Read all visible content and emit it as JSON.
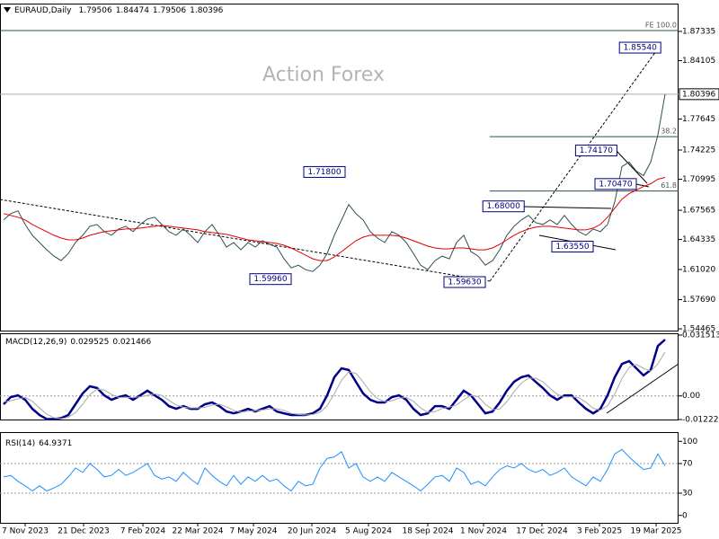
{
  "chart_data": [
    {
      "type": "line",
      "title": "EURAUD,Daily",
      "ohlc": [
        1.79506,
        1.84474,
        1.79506,
        1.80396
      ],
      "watermark": "Action Forex",
      "xlim": [
        -0.5,
        93.875
      ],
      "ylim": [
        1.5427,
        1.9031
      ],
      "yticks": [
        1.87335,
        1.84105,
        1.77645,
        1.74225,
        1.70995,
        1.67565,
        1.64335,
        {
          "value": 1.6102,
          "label": "1.61020"
        },
        {
          "value": 1.5769,
          "label": "1.57690"
        },
        1.54465
      ],
      "current_price": 1.80396,
      "series": [
        {
          "color": "#2f4f4f",
          "values": [
            1.665,
            1.672,
            1.675,
            1.66,
            1.648,
            1.64,
            1.632,
            1.625,
            1.62,
            1.628,
            1.64,
            1.648,
            1.658,
            1.66,
            1.652,
            1.648,
            1.655,
            1.658,
            1.652,
            1.66,
            1.666,
            1.668,
            1.66,
            1.652,
            1.648,
            1.655,
            1.648,
            1.64,
            1.652,
            1.66,
            1.648,
            1.635,
            1.64,
            1.632,
            1.64,
            1.635,
            1.642,
            1.638,
            1.635,
            1.622,
            1.612,
            1.615,
            1.61,
            1.608,
            1.615,
            1.628,
            1.648,
            1.665,
            1.682,
            1.672,
            1.665,
            1.652,
            1.645,
            1.64,
            1.652,
            1.648,
            1.64,
            1.628,
            1.615,
            1.61,
            1.62,
            1.625,
            1.622,
            1.64,
            1.648,
            1.63,
            1.625,
            1.615,
            1.62,
            1.632,
            1.648,
            1.658,
            1.665,
            1.67,
            1.662,
            1.66,
            1.665,
            1.66,
            1.67,
            1.66,
            1.652,
            1.648,
            1.655,
            1.652,
            1.66,
            1.685,
            1.724,
            1.729,
            1.719,
            1.714,
            1.729,
            1.759,
            1.804
          ]
        },
        {
          "color": "#e00000",
          "values": [
            1.672,
            1.67,
            1.668,
            1.665,
            1.66,
            1.656,
            1.652,
            1.648,
            1.645,
            1.643,
            1.643,
            1.645,
            1.648,
            1.65,
            1.652,
            1.653,
            1.654,
            1.655,
            1.655,
            1.656,
            1.657,
            1.658,
            1.659,
            1.658,
            1.657,
            1.656,
            1.655,
            1.654,
            1.652,
            1.651,
            1.65,
            1.649,
            1.647,
            1.645,
            1.643,
            1.642,
            1.641,
            1.64,
            1.639,
            1.637,
            1.634,
            1.63,
            1.626,
            1.622,
            1.62,
            1.62,
            1.624,
            1.63,
            1.636,
            1.642,
            1.646,
            1.648,
            1.648,
            1.648,
            1.648,
            1.647,
            1.645,
            1.642,
            1.639,
            1.636,
            1.634,
            1.633,
            1.633,
            1.634,
            1.634,
            1.633,
            1.632,
            1.632,
            1.634,
            1.638,
            1.643,
            1.648,
            1.652,
            1.655,
            1.657,
            1.658,
            1.658,
            1.657,
            1.656,
            1.655,
            1.654,
            1.654,
            1.656,
            1.66,
            1.668,
            1.678,
            1.688,
            1.694,
            1.698,
            1.702,
            1.705,
            1.71,
            1.712
          ]
        }
      ],
      "annotations": [
        {
          "x": 47.5,
          "value": 1.718,
          "label": "1.71800"
        },
        {
          "x": 40,
          "value": 1.5996,
          "label": "1.59960"
        },
        {
          "x": 67,
          "value": 1.5963,
          "label": "1.59630"
        },
        {
          "x": 72.4,
          "value": 1.68,
          "label": "1.68000"
        },
        {
          "x": 82,
          "value": 1.6355,
          "label": "1.63550"
        },
        {
          "x": 85.3,
          "value": 1.7417,
          "label": "1.74170"
        },
        {
          "x": 88,
          "value": 1.7047,
          "label": "1.70470"
        },
        {
          "x": 91.4,
          "value": 1.8554,
          "label": "1.85540"
        }
      ],
      "levels": [
        {
          "label": "FE 100.0",
          "value": 1.8743,
          "from": -0.5
        },
        {
          "label": 38.2,
          "value": 1.757,
          "from": 67.6
        },
        {
          "label": 61.8,
          "value": 1.697,
          "from": 67.6
        }
      ]
    },
    {
      "type": "line",
      "title": "MACD(12,26,9)",
      "readout": [
        0.029525,
        0.021466
      ],
      "xlim": [
        -0.5,
        93.875
      ],
      "ylim": [
        -0.012223,
        0.031513
      ],
      "yticks": [
        -0.012223,
        {
          "value": 0,
          "label": "0.00"
        },
        0.031513
      ],
      "series": [
        {
          "color": "#00008b",
          "values": [
            -0.0043,
            -0.0006,
            0.0003,
            -0.002,
            -0.0067,
            -0.0099,
            -0.012,
            -0.012,
            -0.0115,
            -0.0099,
            -0.0043,
            0.0013,
            0.005,
            0.0041,
            0.0003,
            -0.002,
            -0.0006,
            0.0003,
            -0.002,
            0.0003,
            0.0027,
            0.0003,
            -0.002,
            -0.0053,
            -0.0067,
            -0.0053,
            -0.0067,
            -0.0067,
            -0.0043,
            -0.0034,
            -0.0053,
            -0.0081,
            -0.009,
            -0.0081,
            -0.0067,
            -0.0081,
            -0.0067,
            -0.0053,
            -0.0081,
            -0.009,
            -0.0099,
            -0.0099,
            -0.0099,
            -0.009,
            -0.0067,
            0.0003,
            0.0097,
            0.0143,
            0.0134,
            0.0073,
            0.0013,
            -0.002,
            -0.0034,
            -0.0034,
            -0.0006,
            0.0003,
            -0.002,
            -0.0067,
            -0.0099,
            -0.009,
            -0.0053,
            -0.0053,
            -0.0067,
            -0.002,
            0.0027,
            0.0003,
            -0.0043,
            -0.009,
            -0.0081,
            -0.0034,
            0.0027,
            0.0073,
            0.0097,
            0.0106,
            0.0073,
            0.0041,
            0.0003,
            -0.002,
            0.0003,
            0.0003,
            -0.0034,
            -0.0067,
            -0.009,
            -0.0067,
            0.0003,
            0.0097,
            0.0166,
            0.018,
            0.0143,
            0.0106,
            0.0134,
            0.0259,
            0.0292
          ]
        },
        {
          "color": "#a9a9a9",
          "values": [
            -0.003,
            -0.0025,
            -0.0015,
            -0.0008,
            -0.0028,
            -0.0062,
            -0.0095,
            -0.0113,
            -0.0118,
            -0.0111,
            -0.0086,
            -0.0043,
            0.0007,
            0.0035,
            0.0031,
            0.0008,
            -0.0008,
            -0.0008,
            -0.0008,
            -0.0005,
            0.0003,
            0.0011,
            0.0003,
            -0.0023,
            -0.0047,
            -0.0058,
            -0.0062,
            -0.0062,
            -0.0059,
            -0.0048,
            -0.0043,
            -0.0056,
            -0.0075,
            -0.0084,
            -0.0079,
            -0.0076,
            -0.0072,
            -0.0067,
            -0.0067,
            -0.0075,
            -0.009,
            -0.0096,
            -0.0099,
            -0.0096,
            -0.0085,
            -0.0051,
            0.0011,
            0.0081,
            0.0125,
            0.0117,
            0.0073,
            0.0022,
            -0.0014,
            -0.0029,
            -0.0025,
            -0.0012,
            -0.0008,
            -0.0028,
            -0.0062,
            -0.0085,
            -0.0081,
            -0.0065,
            -0.0058,
            -0.0047,
            -0.002,
            0.0003,
            -0.0004,
            -0.0043,
            -0.0071,
            -0.0068,
            -0.0029,
            0.0022,
            0.0066,
            0.0092,
            0.0092,
            0.0073,
            0.0039,
            0.0008,
            -0.0005,
            -0.0005,
            -0.0009,
            -0.0033,
            -0.0064,
            -0.0074,
            -0.0051,
            0.0011,
            0.0089,
            0.0148,
            0.0163,
            0.0143,
            0.0128,
            0.0166,
            0.0228
          ]
        }
      ]
    },
    {
      "type": "line",
      "title": "RSI(14)",
      "readout": [
        64.9371
      ],
      "xlim": [
        -0.5,
        93.875
      ],
      "ylim": [
        -10,
        110
      ],
      "yticks": [
        0,
        30,
        70,
        100
      ],
      "levels": [
        30,
        70
      ],
      "xticks": [
        {
          "value": 3,
          "label": "7 Nov 2023"
        },
        {
          "value": 11.125,
          "label": "21 Dec 2023"
        },
        {
          "value": 19.375,
          "label": "7 Feb 2024"
        },
        {
          "value": 27,
          "label": "22 Mar 2024"
        },
        {
          "value": 34.75,
          "label": "7 May 2024"
        },
        {
          "value": 42.875,
          "label": "20 Jun 2024"
        },
        {
          "value": 50.75,
          "label": "5 Aug 2024"
        },
        {
          "value": 59,
          "label": "18 Sep 2024"
        },
        {
          "value": 66.75,
          "label": "1 Nov 2024"
        },
        {
          "value": 74.875,
          "label": "17 Dec 2024"
        },
        {
          "value": 82.875,
          "label": "3 Feb 2025"
        },
        {
          "value": 90.75,
          "label": "19 Mar 2025"
        }
      ],
      "series": [
        {
          "color": "#1e90ff",
          "values": [
            52,
            54,
            46,
            40,
            33,
            40,
            33,
            37,
            42,
            52,
            64,
            58,
            70,
            62,
            52,
            54,
            62,
            54,
            58,
            64,
            70,
            54,
            49,
            52,
            46,
            58,
            49,
            42,
            64,
            54,
            46,
            40,
            54,
            42,
            52,
            46,
            54,
            46,
            49,
            40,
            33,
            46,
            40,
            42,
            64,
            77,
            79,
            86,
            64,
            70,
            52,
            46,
            52,
            46,
            58,
            52,
            46,
            40,
            33,
            42,
            52,
            54,
            46,
            64,
            58,
            42,
            46,
            40,
            52,
            62,
            67,
            64,
            70,
            62,
            58,
            62,
            54,
            58,
            64,
            52,
            46,
            40,
            52,
            46,
            62,
            83,
            89,
            79,
            70,
            62,
            64,
            83,
            67
          ]
        }
      ]
    }
  ]
}
